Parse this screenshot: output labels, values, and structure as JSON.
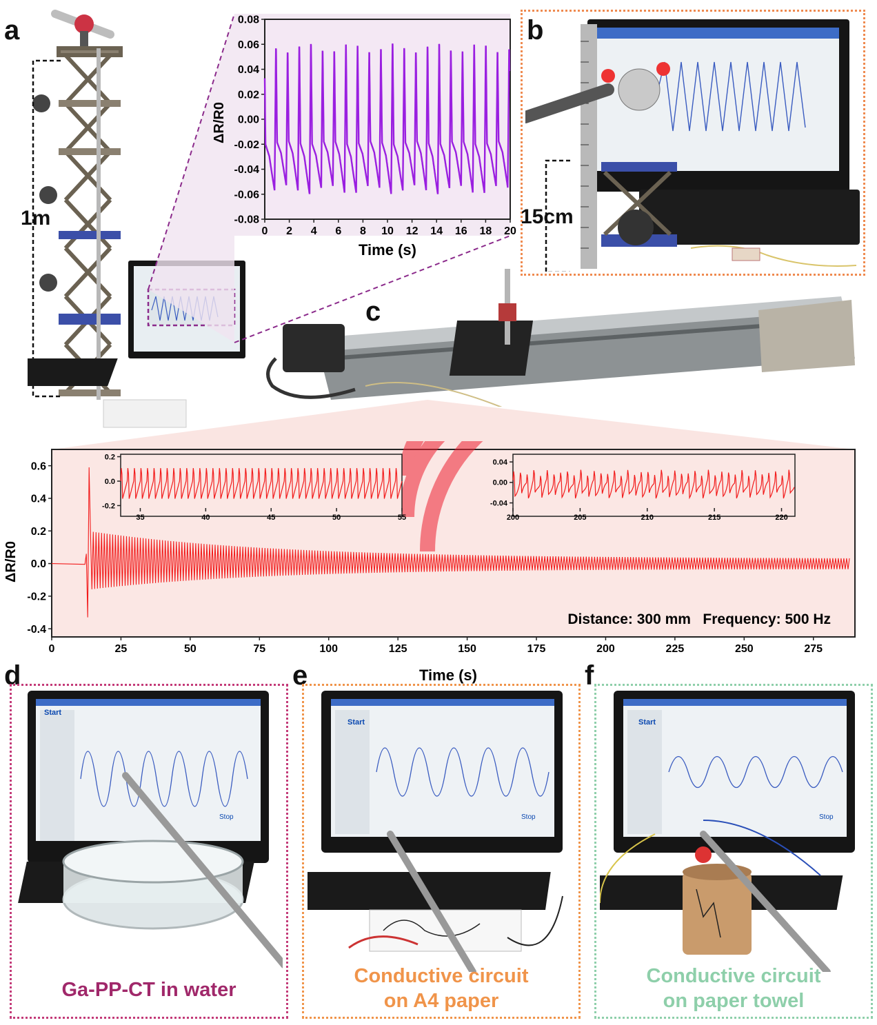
{
  "panels": {
    "a": {
      "letter": "a",
      "height_label": "1m"
    },
    "b": {
      "letter": "b",
      "height_label": "15cm"
    },
    "c": {
      "letter": "c"
    },
    "d": {
      "letter": "d",
      "caption": "Ga-PP-CT in water",
      "caption_color": "#a0286a"
    },
    "e": {
      "letter": "e",
      "caption_line1": "Conductive circuit",
      "caption_line2": "on A4 paper",
      "caption_color": "#f0944a"
    },
    "f": {
      "letter": "f",
      "caption_line1": "Conductive circuit",
      "caption_line2": "on paper towel",
      "caption_color": "#8ecfaa"
    }
  },
  "screen_ui": {
    "start_label": "Start",
    "stop_label": "Stop"
  },
  "colors": {
    "purple_series": "#9a1fe0",
    "red_series": "#f21b1b",
    "border_b": "#ef8a4f",
    "border_d": "#c33a78",
    "border_e": "#f0944a",
    "border_f": "#8ecfaa",
    "callout_purple": "#8b2a8b"
  },
  "chart_data": [
    {
      "id": "top-inset",
      "type": "line",
      "xlabel": "Time (s)",
      "ylabel": "ΔR/R0",
      "xlim": [
        0,
        20
      ],
      "ylim": [
        -0.08,
        0.08
      ],
      "xticks": [
        "0",
        "2",
        "4",
        "6",
        "8",
        "10",
        "12",
        "14",
        "16",
        "18",
        "20"
      ],
      "yticks": [
        "-0.08",
        "-0.06",
        "-0.04",
        "-0.02",
        "0.00",
        "0.02",
        "0.04",
        "0.06",
        "0.08"
      ],
      "series": [
        {
          "period_s": 0.95,
          "peak": 0.065,
          "trough": -0.06
        }
      ]
    },
    {
      "id": "main",
      "type": "line",
      "xlabel": "Time (s)",
      "ylabel": "ΔR/R0",
      "xlim": [
        0,
        290
      ],
      "ylim": [
        -0.45,
        0.7
      ],
      "xticks": [
        "0",
        "25",
        "50",
        "75",
        "100",
        "125",
        "150",
        "175",
        "200",
        "225",
        "250",
        "275"
      ],
      "yticks": [
        "0.6",
        "0.4",
        "0.2",
        "0.0",
        "-0.2",
        "-0.4"
      ],
      "annotation": "Distance: 300 mm   Frequency: 500 Hz",
      "series": [
        {
          "onset_s": 13,
          "spike_max": 0.59,
          "spike_min": -0.33,
          "initial_amplitude": 0.2,
          "end_s": 288
        }
      ],
      "insets": [
        {
          "xlim": [
            33.5,
            55
          ],
          "ylim": [
            -0.22,
            0.22
          ],
          "xticks": [
            "35",
            "40",
            "45",
            "50",
            "55"
          ],
          "yticks": [
            "0.2",
            "0.0",
            "-0.2"
          ]
        },
        {
          "xlim": [
            200,
            221
          ],
          "ylim": [
            -0.05,
            0.055
          ],
          "xticks": [
            "200",
            "205",
            "210",
            "215",
            "220"
          ],
          "yticks": [
            "0.04",
            "0.00",
            "-0.04"
          ]
        }
      ]
    }
  ]
}
